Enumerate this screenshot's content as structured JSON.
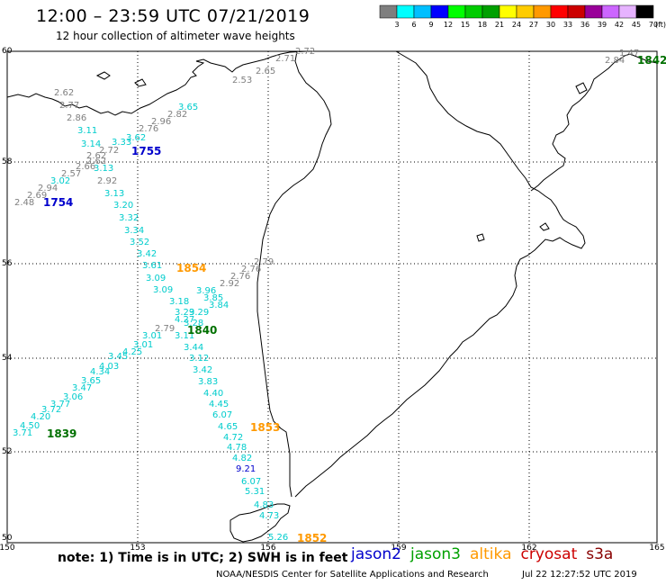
{
  "title": "12:00 – 23:59 UTC 07/21/2019",
  "subtitle": "12 hour collection of altimeter wave heights",
  "colorbar": {
    "colors": [
      "#7f7f7f",
      "#00ffff",
      "#00bfff",
      "#0000ff",
      "#00ff00",
      "#00cc00",
      "#00a000",
      "#ffff00",
      "#ffcc00",
      "#ff9900",
      "#ff0000",
      "#cc0000",
      "#990099",
      "#cc66ff",
      "#e6b3ff",
      "#000000"
    ],
    "labels": [
      "3",
      "6",
      "9",
      "12",
      "15",
      "18",
      "21",
      "24",
      "27",
      "30",
      "33",
      "36",
      "39",
      "42",
      "45",
      "70",
      "(ft)"
    ]
  },
  "axes": {
    "lon_ticks": [
      "150",
      "153",
      "156",
      "159",
      "162",
      "165"
    ],
    "lat_ticks": [
      "60",
      "58",
      "56",
      "54",
      "52",
      "50"
    ]
  },
  "note": "note:  1) Time is in UTC;  2) SWH is in feet",
  "missions": [
    {
      "name": "jason2",
      "color": "#0000cc"
    },
    {
      "name": "jason3",
      "color": "#00a000"
    },
    {
      "name": "altika",
      "color": "#ff9900"
    },
    {
      "name": "cryosat",
      "color": "#cc0000"
    },
    {
      "name": "s3a",
      "color": "#880000"
    }
  ],
  "credit": "NOAA/NESDIS Center for Satellite Applications and Research",
  "timestamp": "Jul 22 12:27:52 UTC 2019",
  "track_labels": [
    {
      "text": "1755",
      "color": "#0000cc"
    },
    {
      "text": "1754",
      "color": "#0000cc"
    },
    {
      "text": "1854",
      "color": "#ff9900"
    },
    {
      "text": "1840",
      "color": "#007000"
    },
    {
      "text": "1839",
      "color": "#007000"
    },
    {
      "text": "1853",
      "color": "#ff9900"
    },
    {
      "text": "1852",
      "color": "#ff9900"
    },
    {
      "text": "1842",
      "color": "#007000"
    }
  ],
  "wave_heights": [
    {
      "text": "2.72",
      "color": "#7f7f7f"
    },
    {
      "text": "2.71",
      "color": "#7f7f7f"
    },
    {
      "text": "2.65",
      "color": "#7f7f7f"
    },
    {
      "text": "2.53",
      "color": "#7f7f7f"
    },
    {
      "text": "2.62",
      "color": "#7f7f7f"
    },
    {
      "text": "2.77",
      "color": "#7f7f7f"
    },
    {
      "text": "2.86",
      "color": "#7f7f7f"
    },
    {
      "text": "3.65",
      "color": "#00cccc"
    },
    {
      "text": "2.82",
      "color": "#7f7f7f"
    },
    {
      "text": "2.96",
      "color": "#7f7f7f"
    },
    {
      "text": "2.76",
      "color": "#7f7f7f"
    },
    {
      "text": "3.11",
      "color": "#00cccc"
    },
    {
      "text": "3.62",
      "color": "#00cccc"
    },
    {
      "text": "3.14",
      "color": "#00cccc"
    },
    {
      "text": "3.33",
      "color": "#00cccc"
    },
    {
      "text": "2.72",
      "color": "#7f7f7f"
    },
    {
      "text": "2.62",
      "color": "#7f7f7f"
    },
    {
      "text": "2.62",
      "color": "#7f7f7f"
    },
    {
      "text": "2.66",
      "color": "#7f7f7f"
    },
    {
      "text": "3.13",
      "color": "#00cccc"
    },
    {
      "text": "2.57",
      "color": "#7f7f7f"
    },
    {
      "text": "3.02",
      "color": "#00cccc"
    },
    {
      "text": "2.92",
      "color": "#7f7f7f"
    },
    {
      "text": "2.94",
      "color": "#7f7f7f"
    },
    {
      "text": "2.69",
      "color": "#7f7f7f"
    },
    {
      "text": "3.13",
      "color": "#00cccc"
    },
    {
      "text": "2.48",
      "color": "#7f7f7f"
    },
    {
      "text": "3.20",
      "color": "#00cccc"
    },
    {
      "text": "3.32",
      "color": "#00cccc"
    },
    {
      "text": "3.34",
      "color": "#00cccc"
    },
    {
      "text": "3.52",
      "color": "#00cccc"
    },
    {
      "text": "3.42",
      "color": "#00cccc"
    },
    {
      "text": "3.61",
      "color": "#00cccc"
    },
    {
      "text": "2.79",
      "color": "#7f7f7f"
    },
    {
      "text": "2.76",
      "color": "#7f7f7f"
    },
    {
      "text": "3.09",
      "color": "#00cccc"
    },
    {
      "text": "2.92",
      "color": "#7f7f7f"
    },
    {
      "text": "2.76",
      "color": "#7f7f7f"
    },
    {
      "text": "3.09",
      "color": "#00cccc"
    },
    {
      "text": "3.96",
      "color": "#00cccc"
    },
    {
      "text": "3.85",
      "color": "#00cccc"
    },
    {
      "text": "3.18",
      "color": "#00cccc"
    },
    {
      "text": "3.84",
      "color": "#00cccc"
    },
    {
      "text": "3.29",
      "color": "#00cccc"
    },
    {
      "text": "3.29",
      "color": "#00cccc"
    },
    {
      "text": "4.27",
      "color": "#00cccc"
    },
    {
      "text": "3.28",
      "color": "#00cccc"
    },
    {
      "text": "2.79",
      "color": "#7f7f7f"
    },
    {
      "text": "3.11",
      "color": "#00cccc"
    },
    {
      "text": "3.01",
      "color": "#00cccc"
    },
    {
      "text": "3.01",
      "color": "#00cccc"
    },
    {
      "text": "3.44",
      "color": "#00cccc"
    },
    {
      "text": "4.25",
      "color": "#00cccc"
    },
    {
      "text": "3.45",
      "color": "#00cccc"
    },
    {
      "text": "3.12",
      "color": "#00cccc"
    },
    {
      "text": "4.03",
      "color": "#00cccc"
    },
    {
      "text": "4.34",
      "color": "#00cccc"
    },
    {
      "text": "3.42",
      "color": "#00cccc"
    },
    {
      "text": "3.65",
      "color": "#00cccc"
    },
    {
      "text": "3.47",
      "color": "#00cccc"
    },
    {
      "text": "3.83",
      "color": "#00cccc"
    },
    {
      "text": "3.06",
      "color": "#00cccc"
    },
    {
      "text": "3.77",
      "color": "#00cccc"
    },
    {
      "text": "4.40",
      "color": "#00cccc"
    },
    {
      "text": "3.72",
      "color": "#00cccc"
    },
    {
      "text": "4.45",
      "color": "#00cccc"
    },
    {
      "text": "4.20",
      "color": "#00cccc"
    },
    {
      "text": "6.07",
      "color": "#00cccc"
    },
    {
      "text": "4.50",
      "color": "#00cccc"
    },
    {
      "text": "3.71",
      "color": "#00cccc"
    },
    {
      "text": "4.65",
      "color": "#00cccc"
    },
    {
      "text": "4.72",
      "color": "#00cccc"
    },
    {
      "text": "4.78",
      "color": "#00cccc"
    },
    {
      "text": "4.82",
      "color": "#00cccc"
    },
    {
      "text": "9.21",
      "color": "#0000cc"
    },
    {
      "text": "6.07",
      "color": "#00cccc"
    },
    {
      "text": "5.31",
      "color": "#00cccc"
    },
    {
      "text": "4.83",
      "color": "#00cccc"
    },
    {
      "text": "4.73",
      "color": "#00cccc"
    },
    {
      "text": "5.26",
      "color": "#00cccc"
    },
    {
      "text": "1.47",
      "color": "#7f7f7f"
    },
    {
      "text": "2.84",
      "color": "#7f7f7f"
    }
  ]
}
